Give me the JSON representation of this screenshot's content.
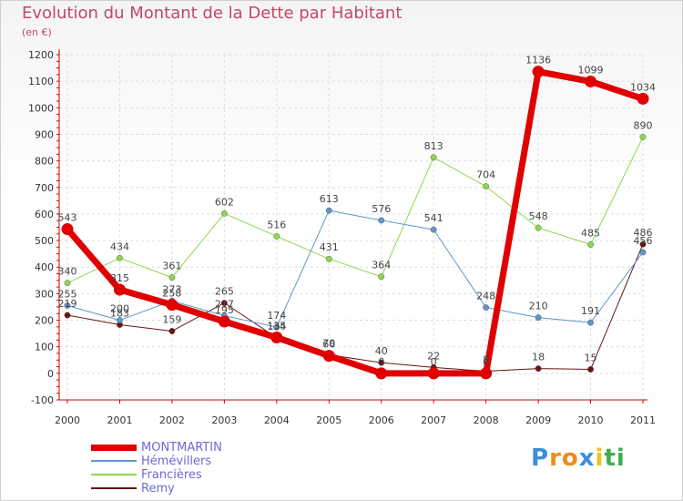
{
  "title": "Evolution du Montant de la Dette par Habitant",
  "subtitle": "(en €)",
  "brand": {
    "letters": [
      "P",
      "r",
      "o",
      "x",
      "i",
      "t",
      "i"
    ],
    "colors": [
      "#3c8fd8",
      "#f08a1a",
      "#f08a1a",
      "#3c8fd8",
      "#f2c21a",
      "#3fae49",
      "#3fae49"
    ]
  },
  "chart_data": {
    "type": "line",
    "categories": [
      "2000",
      "2001",
      "2002",
      "2003",
      "2004",
      "2005",
      "2006",
      "2007",
      "2008",
      "2009",
      "2010",
      "2011"
    ],
    "ylim": [
      -100,
      1200
    ],
    "yticks": [
      "-100",
      "0",
      "100",
      "200",
      "300",
      "400",
      "500",
      "600",
      "700",
      "800",
      "900",
      "1000",
      "1100",
      "1200"
    ],
    "grid": true,
    "legend_position": "bottom-left",
    "series": [
      {
        "name": "Remy",
        "color": "#6b1414",
        "width": 1,
        "values": [
          219,
          183,
          159,
          265,
          134,
          70,
          40,
          22,
          8,
          18,
          15,
          486
        ],
        "labels": [
          "219",
          "183",
          "159",
          "265",
          "134",
          "70",
          "40",
          "22",
          "8",
          "18",
          "15",
          "486"
        ]
      },
      {
        "name": "Francières",
        "color": "#8fd650",
        "width": 1,
        "values": [
          340,
          434,
          361,
          602,
          516,
          431,
          364,
          813,
          704,
          548,
          485,
          890
        ],
        "labels": [
          "340",
          "434",
          "361",
          "602",
          "516",
          "431",
          "364",
          "813",
          "704",
          "548",
          "485",
          "890"
        ]
      },
      {
        "name": "Hémévillers",
        "color": "#5f98cc",
        "width": 1,
        "values": [
          255,
          200,
          273,
          217,
          174,
          613,
          576,
          541,
          248,
          210,
          191,
          456
        ],
        "labels": [
          "255",
          "200",
          "273",
          "217",
          "174",
          "613",
          "576",
          "541",
          "248",
          "210",
          "191",
          "456"
        ]
      },
      {
        "name": "MONTMARTIN",
        "color": "#e00000",
        "width": 7,
        "values": [
          543,
          315,
          258,
          195,
          135,
          66,
          0,
          0,
          0,
          1136,
          1099,
          1034
        ],
        "labels": [
          "543",
          "315",
          "258",
          "195",
          "135",
          "66",
          "0",
          "0",
          "0",
          "1136",
          "1099",
          "1034"
        ]
      }
    ],
    "legend": [
      {
        "name": "MONTMARTIN",
        "color": "#e00000",
        "thickness": 7
      },
      {
        "name": "Hémévillers",
        "color": "#5f98cc",
        "thickness": 2
      },
      {
        "name": "Francières",
        "color": "#8fd650",
        "thickness": 2
      },
      {
        "name": "Remy",
        "color": "#6b1414",
        "thickness": 2
      }
    ]
  }
}
